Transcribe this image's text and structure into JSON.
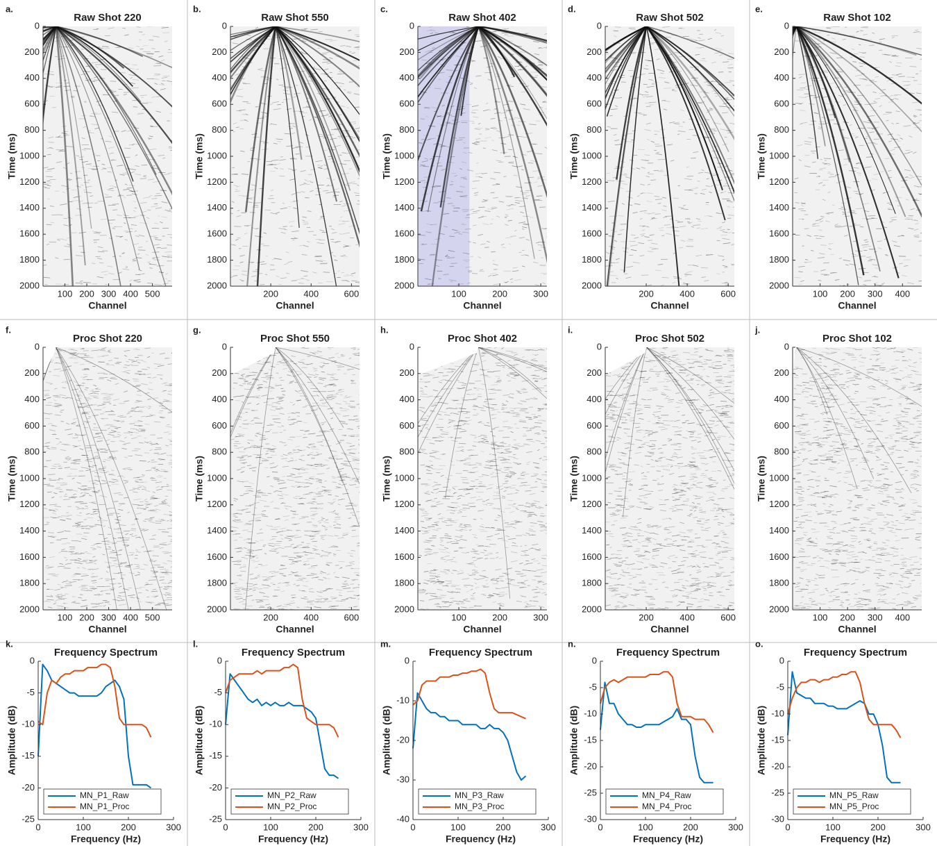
{
  "chart_data": [
    {
      "type": "seismic",
      "label": "a.",
      "title": "Raw Shot 220",
      "xlabel": "Channel",
      "ylabel": "Time (ms)",
      "xlim": [
        0,
        590
      ],
      "xticks": [
        100,
        200,
        300,
        400,
        500
      ],
      "ylim": [
        0,
        2000
      ],
      "yticks": [
        0,
        200,
        400,
        600,
        800,
        1000,
        1200,
        1400,
        1600,
        1800,
        2000
      ],
      "y_inverted": true
    },
    {
      "type": "seismic",
      "label": "b.",
      "title": "Raw Shot 550",
      "xlabel": "Channel",
      "ylabel": "Time (ms)",
      "xlim": [
        0,
        640
      ],
      "xticks": [
        200,
        400,
        600
      ],
      "ylim": [
        0,
        2000
      ],
      "yticks": [
        0,
        200,
        400,
        600,
        800,
        1000,
        1200,
        1400,
        1600,
        1800,
        2000
      ],
      "y_inverted": true
    },
    {
      "type": "seismic",
      "label": "c.",
      "title": "Raw Shot 402",
      "xlabel": "Channel",
      "ylabel": "Time (ms)",
      "xlim": [
        0,
        315
      ],
      "xticks": [
        100,
        200,
        300
      ],
      "ylim": [
        0,
        2000
      ],
      "yticks": [
        0,
        200,
        400,
        600,
        800,
        1000,
        1200,
        1400,
        1600,
        1800,
        2000
      ],
      "y_inverted": true
    },
    {
      "type": "seismic",
      "label": "d.",
      "title": "Raw Shot 502",
      "xlabel": "Channel",
      "ylabel": "Time (ms)",
      "xlim": [
        0,
        630
      ],
      "xticks": [
        200,
        400,
        600
      ],
      "ylim": [
        0,
        2000
      ],
      "yticks": [
        0,
        200,
        400,
        600,
        800,
        1000,
        1200,
        1400,
        1600,
        1800,
        2000
      ],
      "y_inverted": true
    },
    {
      "type": "seismic",
      "label": "e.",
      "title": "Raw Shot 102",
      "xlabel": "Channel",
      "ylabel": "Time (ms)",
      "xlim": [
        0,
        470
      ],
      "xticks": [
        100,
        200,
        300,
        400
      ],
      "ylim": [
        0,
        2000
      ],
      "yticks": [
        0,
        200,
        400,
        600,
        800,
        1000,
        1200,
        1400,
        1600,
        1800,
        2000
      ],
      "y_inverted": true
    },
    {
      "type": "seismic",
      "label": "f.",
      "title": "Proc Shot 220",
      "xlabel": "Channel",
      "ylabel": "Time (ms)",
      "xlim": [
        0,
        590
      ],
      "xticks": [
        100,
        200,
        300,
        400,
        500
      ],
      "ylim": [
        0,
        2000
      ],
      "yticks": [
        0,
        200,
        400,
        600,
        800,
        1000,
        1200,
        1400,
        1600,
        1800,
        2000
      ],
      "y_inverted": true
    },
    {
      "type": "seismic",
      "label": "g.",
      "title": "Proc Shot 550",
      "xlabel": "Channel",
      "ylabel": "Time (ms)",
      "xlim": [
        0,
        640
      ],
      "xticks": [
        200,
        400,
        600
      ],
      "ylim": [
        0,
        2000
      ],
      "yticks": [
        0,
        200,
        400,
        600,
        800,
        1000,
        1200,
        1400,
        1600,
        1800,
        2000
      ],
      "y_inverted": true
    },
    {
      "type": "seismic",
      "label": "h.",
      "title": "Proc Shot 402",
      "xlabel": "Channel",
      "ylabel": "Time (ms)",
      "xlim": [
        0,
        315
      ],
      "xticks": [
        100,
        200,
        300
      ],
      "ylim": [
        0,
        2000
      ],
      "yticks": [
        0,
        200,
        400,
        600,
        800,
        1000,
        1200,
        1400,
        1600,
        1800,
        2000
      ],
      "y_inverted": true
    },
    {
      "type": "seismic",
      "label": "i.",
      "title": "Proc Shot 502",
      "xlabel": "Channel",
      "ylabel": "Time (ms)",
      "xlim": [
        0,
        630
      ],
      "xticks": [
        200,
        400,
        600
      ],
      "ylim": [
        0,
        2000
      ],
      "yticks": [
        0,
        200,
        400,
        600,
        800,
        1000,
        1200,
        1400,
        1600,
        1800,
        2000
      ],
      "y_inverted": true
    },
    {
      "type": "seismic",
      "label": "j.",
      "title": "Proc Shot 102",
      "xlabel": "Channel",
      "ylabel": "Time (ms)",
      "xlim": [
        0,
        470
      ],
      "xticks": [
        100,
        200,
        300,
        400
      ],
      "ylim": [
        0,
        2000
      ],
      "yticks": [
        0,
        200,
        400,
        600,
        800,
        1000,
        1200,
        1400,
        1600,
        1800,
        2000
      ],
      "y_inverted": true
    },
    {
      "type": "line",
      "label": "k.",
      "title": "Frequency Spectrum",
      "xlabel": "Frequency (Hz)",
      "ylabel": "Amplitude (dB)",
      "xlim": [
        0,
        300
      ],
      "xticks": [
        0,
        100,
        200,
        300
      ],
      "ylim": [
        -25,
        0
      ],
      "yticks": [
        -25,
        -20,
        -15,
        -10,
        -5,
        0
      ],
      "x": [
        0,
        10,
        20,
        30,
        40,
        50,
        60,
        70,
        80,
        90,
        100,
        110,
        120,
        130,
        140,
        150,
        160,
        170,
        180,
        190,
        200,
        210,
        220,
        230,
        240,
        250
      ],
      "series": [
        {
          "name": "MN_P1_Raw",
          "color": "#0072bd",
          "values": [
            -15,
            -0.5,
            -1.5,
            -3,
            -3.5,
            -4,
            -4.5,
            -5,
            -5,
            -5.5,
            -5.5,
            -5.5,
            -5.5,
            -5.5,
            -5,
            -4,
            -3.5,
            -3,
            -4,
            -6,
            -15,
            -19.5,
            -19.5,
            -19.5,
            -19.5,
            -20
          ]
        },
        {
          "name": "MN_P1_Proc",
          "color": "#d95319",
          "values": [
            -9.5,
            -10,
            -5,
            -3,
            -3.5,
            -2.5,
            -2,
            -2,
            -1.5,
            -1.5,
            -1.5,
            -1,
            -1,
            -1,
            -0.5,
            -0.5,
            -1,
            -4,
            -9,
            -10,
            -10,
            -10,
            -10,
            -10,
            -10.5,
            -12
          ]
        }
      ]
    },
    {
      "type": "line",
      "label": "l.",
      "title": "Frequency Spectrum",
      "xlabel": "Frequency (Hz)",
      "ylabel": "Amplitude (dB)",
      "xlim": [
        0,
        300
      ],
      "xticks": [
        0,
        100,
        200,
        300
      ],
      "ylim": [
        -25,
        0
      ],
      "yticks": [
        -25,
        -20,
        -15,
        -10,
        -5,
        0
      ],
      "x": [
        0,
        10,
        20,
        30,
        40,
        50,
        60,
        70,
        80,
        90,
        100,
        110,
        120,
        130,
        140,
        150,
        160,
        170,
        180,
        190,
        200,
        210,
        220,
        230,
        240,
        250
      ],
      "series": [
        {
          "name": "MN_P2_Raw",
          "color": "#0072bd",
          "values": [
            -10,
            -2,
            -3,
            -4,
            -5,
            -6,
            -6.5,
            -6,
            -7,
            -6.5,
            -7,
            -6.5,
            -7,
            -7,
            -6.5,
            -7,
            -7,
            -7,
            -7.5,
            -8,
            -9,
            -13,
            -17,
            -18,
            -18,
            -18.5
          ]
        },
        {
          "name": "MN_P2_Proc",
          "color": "#d95319",
          "values": [
            -5,
            -3,
            -2.5,
            -2,
            -2,
            -2,
            -2,
            -1.5,
            -2,
            -1.5,
            -1.5,
            -1.5,
            -1.5,
            -1,
            -1,
            -0.5,
            -1,
            -6,
            -9,
            -9.5,
            -10,
            -10,
            -10,
            -10,
            -10.5,
            -12
          ]
        }
      ]
    },
    {
      "type": "line",
      "label": "m.",
      "title": "Frequency Spectrum",
      "xlabel": "Frequency (Hz)",
      "ylabel": "Amplitude (dB)",
      "xlim": [
        0,
        300
      ],
      "xticks": [
        0,
        100,
        200,
        300
      ],
      "ylim": [
        -40,
        0
      ],
      "yticks": [
        -40,
        -30,
        -20,
        -10,
        0
      ],
      "x": [
        0,
        10,
        20,
        30,
        40,
        50,
        60,
        70,
        80,
        90,
        100,
        110,
        120,
        130,
        140,
        150,
        160,
        170,
        180,
        190,
        200,
        210,
        220,
        230,
        240,
        250
      ],
      "series": [
        {
          "name": "MN_P3_Raw",
          "color": "#0072bd",
          "values": [
            -22,
            -8,
            -10,
            -12,
            -13,
            -13,
            -14,
            -14,
            -15,
            -15,
            -15,
            -16,
            -16,
            -16,
            -16,
            -17,
            -17,
            -16,
            -17,
            -17,
            -18,
            -20,
            -24,
            -28,
            -30,
            -29
          ]
        },
        {
          "name": "MN_P3_Proc",
          "color": "#d95319",
          "values": [
            -11,
            -10,
            -6,
            -5,
            -5,
            -5,
            -4,
            -4,
            -4,
            -3.5,
            -3.5,
            -3,
            -3,
            -2.5,
            -2.5,
            -2,
            -3,
            -8,
            -12,
            -13,
            -13,
            -13,
            -13,
            -13.5,
            -14,
            -14.5
          ]
        }
      ]
    },
    {
      "type": "line",
      "label": "n.",
      "title": "Frequency Spectrum",
      "xlabel": "Frequency (Hz)",
      "ylabel": "Amplitude (dB)",
      "xlim": [
        0,
        300
      ],
      "xticks": [
        0,
        100,
        200,
        300
      ],
      "ylim": [
        -30,
        0
      ],
      "yticks": [
        -30,
        -25,
        -20,
        -15,
        -10,
        -5,
        0
      ],
      "x": [
        0,
        10,
        20,
        30,
        40,
        50,
        60,
        70,
        80,
        90,
        100,
        110,
        120,
        130,
        140,
        150,
        160,
        170,
        180,
        190,
        200,
        210,
        220,
        230,
        240,
        250
      ],
      "series": [
        {
          "name": "MN_P4_Raw",
          "color": "#0072bd",
          "values": [
            -13,
            -4,
            -8,
            -8,
            -10,
            -11,
            -12,
            -12,
            -12.5,
            -12.5,
            -12,
            -12,
            -12,
            -12,
            -11.5,
            -11,
            -10.5,
            -9,
            -11,
            -11,
            -12,
            -18,
            -22,
            -23,
            -23,
            -23
          ]
        },
        {
          "name": "MN_P4_Proc",
          "color": "#d95319",
          "values": [
            -8,
            -5,
            -4,
            -3.5,
            -4,
            -3.5,
            -3,
            -3,
            -3,
            -3,
            -3,
            -2.5,
            -2.5,
            -2.5,
            -2,
            -2,
            -3,
            -8,
            -10.5,
            -10.5,
            -10.5,
            -11,
            -11,
            -11,
            -12,
            -13.5
          ]
        }
      ]
    },
    {
      "type": "line",
      "label": "o.",
      "title": "Frequency Spectrum",
      "xlabel": "Frequency (Hz)",
      "ylabel": "Amplitude (dB)",
      "xlim": [
        0,
        300
      ],
      "xticks": [
        0,
        100,
        200,
        300
      ],
      "ylim": [
        -30,
        0
      ],
      "yticks": [
        -30,
        -25,
        -20,
        -15,
        -10,
        -5,
        0
      ],
      "x": [
        0,
        10,
        20,
        30,
        40,
        50,
        60,
        70,
        80,
        90,
        100,
        110,
        120,
        130,
        140,
        150,
        160,
        170,
        180,
        190,
        200,
        210,
        220,
        230,
        240,
        250
      ],
      "series": [
        {
          "name": "MN_P5_Raw",
          "color": "#0072bd",
          "values": [
            -14,
            -2,
            -6,
            -6.5,
            -7,
            -7,
            -8,
            -8,
            -8,
            -8.5,
            -8.5,
            -9,
            -9,
            -9,
            -8.5,
            -8,
            -7.5,
            -8,
            -10,
            -10,
            -12,
            -16,
            -22,
            -23,
            -23,
            -23
          ]
        },
        {
          "name": "MN_P5_Proc",
          "color": "#d95319",
          "values": [
            -10,
            -7,
            -5,
            -4,
            -4,
            -3.5,
            -3.5,
            -4,
            -3.5,
            -3.5,
            -3,
            -3,
            -2.5,
            -2.5,
            -2,
            -2,
            -4,
            -8,
            -11,
            -12,
            -12,
            -12,
            -12,
            -12,
            -13,
            -14.5
          ]
        }
      ]
    }
  ]
}
